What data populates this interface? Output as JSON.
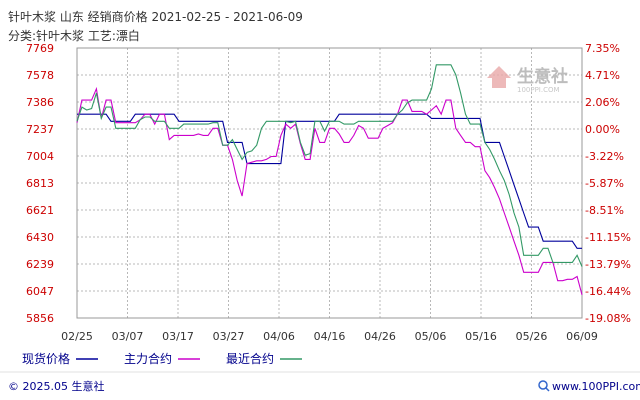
{
  "chart_data": {
    "type": "line",
    "title": "针叶木浆 山东 经销商价格  2021-02-25 - 2021-06-09",
    "subtitle": "分类:针叶木浆 工艺:漂白",
    "yticks_left": [
      "7769",
      "7578",
      "7386",
      "7237",
      "7004",
      "6813",
      "6621",
      "6430",
      "6239",
      "6047",
      "5856"
    ],
    "yticks_right": [
      "7.35%",
      "4.71%",
      "2.06%",
      "0.00%",
      "-3.22%",
      "-5.87%",
      "-8.51%",
      "-11.15%",
      "-13.79%",
      "-16.44%",
      "-19.08%"
    ],
    "ylim": [
      5856,
      7769
    ],
    "base_value": 7237,
    "xticks": [
      "02/25",
      "03/07",
      "03/17",
      "03/27",
      "04/06",
      "04/16",
      "04/26",
      "05/06",
      "05/16",
      "05/26",
      "06/09"
    ],
    "series": [
      {
        "name": "现货价格",
        "color": "#00009c",
        "values": [
          7300,
          7300,
          7300,
          7300,
          7300,
          7300,
          7300,
          7250,
          7250,
          7250,
          7250,
          7250,
          7300,
          7300,
          7300,
          7300,
          7300,
          7300,
          7300,
          7300,
          7300,
          7250,
          7250,
          7250,
          7250,
          7250,
          7250,
          7250,
          7250,
          7250,
          7250,
          7100,
          7100,
          7100,
          7100,
          6950,
          6950,
          6950,
          6950,
          6950,
          6950,
          6950,
          6950,
          7250,
          7250,
          7250,
          7250,
          7250,
          7250,
          7250,
          7250,
          7250,
          7250,
          7250,
          7300,
          7300,
          7300,
          7300,
          7300,
          7300,
          7300,
          7300,
          7300,
          7300,
          7300,
          7300,
          7300,
          7300,
          7300,
          7300,
          7300,
          7300,
          7300,
          7270,
          7270,
          7270,
          7270,
          7270,
          7270,
          7270,
          7270,
          7270,
          7270,
          7270,
          7100,
          7100,
          7100,
          7100,
          7000,
          6900,
          6800,
          6700,
          6600,
          6500,
          6500,
          6500,
          6400,
          6400,
          6400,
          6400,
          6400,
          6400,
          6400,
          6350,
          6350
        ]
      },
      {
        "name": "主力合约",
        "color": "#cc00cc",
        "values": [
          7240,
          7400,
          7400,
          7400,
          7480,
          7270,
          7400,
          7400,
          7240,
          7240,
          7240,
          7240,
          7240,
          7260,
          7300,
          7300,
          7230,
          7300,
          7300,
          7120,
          7150,
          7150,
          7150,
          7150,
          7150,
          7160,
          7150,
          7150,
          7200,
          7200,
          7080,
          7080,
          6980,
          6830,
          6720,
          6950,
          6960,
          6970,
          6970,
          6980,
          7000,
          7000,
          7150,
          7230,
          7200,
          7230,
          7090,
          6980,
          6980,
          7200,
          7100,
          7100,
          7200,
          7200,
          7160,
          7100,
          7100,
          7150,
          7220,
          7200,
          7130,
          7130,
          7130,
          7200,
          7220,
          7240,
          7300,
          7400,
          7400,
          7320,
          7320,
          7320,
          7300,
          7330,
          7360,
          7300,
          7400,
          7400,
          7200,
          7150,
          7100,
          7100,
          7070,
          7070,
          6900,
          6850,
          6780,
          6700,
          6600,
          6500,
          6400,
          6300,
          6180,
          6180,
          6180,
          6180,
          6250,
          6250,
          6250,
          6120,
          6120,
          6130,
          6130,
          6150,
          6020
        ]
      },
      {
        "name": "最近合约",
        "color": "#339966",
        "values": [
          7250,
          7350,
          7330,
          7340,
          7450,
          7270,
          7350,
          7350,
          7200,
          7200,
          7200,
          7200,
          7200,
          7260,
          7280,
          7280,
          7250,
          7250,
          7250,
          7200,
          7200,
          7200,
          7230,
          7230,
          7230,
          7230,
          7230,
          7230,
          7240,
          7240,
          7080,
          7080,
          7120,
          7050,
          6980,
          7030,
          7040,
          7080,
          7200,
          7250,
          7250,
          7250,
          7250,
          7250,
          7240,
          7250,
          7100,
          7010,
          7020,
          7250,
          7250,
          7180,
          7250,
          7250,
          7250,
          7230,
          7230,
          7230,
          7250,
          7250,
          7250,
          7250,
          7250,
          7250,
          7250,
          7250,
          7300,
          7330,
          7380,
          7400,
          7400,
          7400,
          7400,
          7480,
          7650,
          7650,
          7650,
          7650,
          7580,
          7450,
          7300,
          7230,
          7230,
          7230,
          7100,
          7050,
          6980,
          6900,
          6830,
          6730,
          6600,
          6500,
          6300,
          6300,
          6300,
          6300,
          6350,
          6350,
          6250,
          6250,
          6250,
          6250,
          6250,
          6300,
          6220
        ]
      }
    ]
  },
  "watermark": "生意社",
  "watermark_small": "100PPI.COM",
  "footer_left": "© 2025.05 生意社",
  "footer_right": "www.100PPI.com",
  "footer_icon": "magnifier-icon",
  "colors": {
    "left_axis": "#cc0000",
    "right_axis": "#cc0000",
    "grid": "#b8b8b8",
    "text": "#333333"
  }
}
